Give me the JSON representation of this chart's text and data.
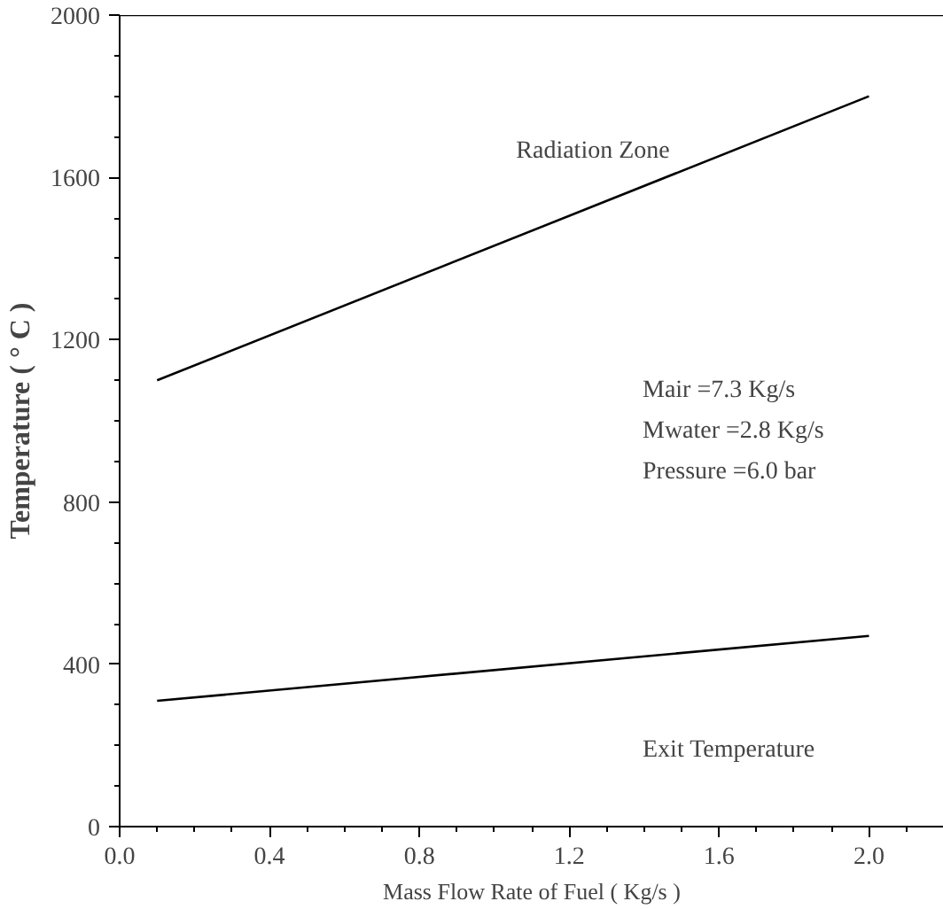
{
  "chart_data": {
    "type": "line",
    "xlabel": "Mass Flow Rate of Fuel ( Kg/s )",
    "ylabel": "Temperature ( ° C )",
    "x": [
      0.1,
      2.0
    ],
    "series": [
      {
        "color": "#000000",
        "values": [
          1100,
          1800
        ]
      },
      {
        "color": "#000000",
        "values": [
          310,
          470
        ]
      }
    ],
    "annotations": [
      "Radiation Zone",
      "Mair =7.3 Kg/s",
      "Mwater =2.8 Kg/s",
      "Pressure =6.0 bar",
      "Exit Temperature"
    ],
    "xlim": [
      0,
      2.2
    ],
    "ylim": [
      0,
      2000
    ],
    "xticks": [
      {
        "value": 0,
        "label": "0.0"
      },
      0.4,
      0.8,
      1.2,
      1.6,
      {
        "value": 2,
        "label": "2.0"
      }
    ],
    "yticks": [
      0,
      400,
      800,
      1200,
      1600,
      2000
    ],
    "grid": false,
    "marker": "none",
    "line_style": "solid"
  }
}
